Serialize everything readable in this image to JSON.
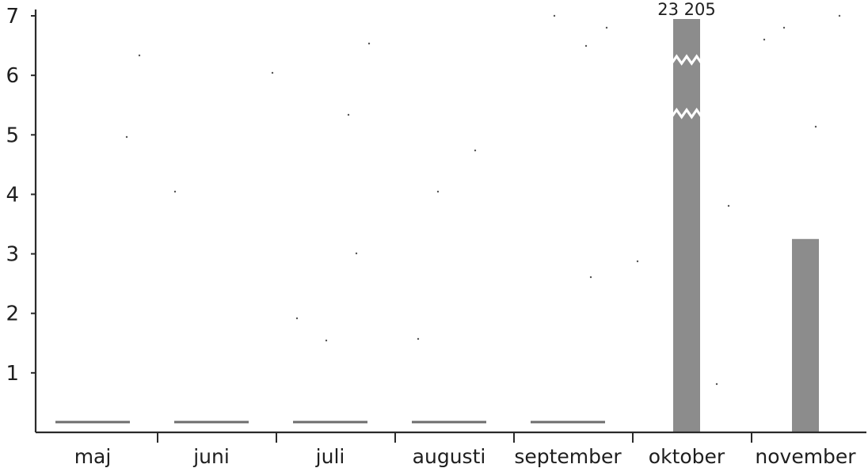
{
  "chart_data": {
    "type": "bar",
    "categories": [
      "maj",
      "juni",
      "juli",
      "augusti",
      "september",
      "oktober",
      "november"
    ],
    "values": [
      0.2,
      0.2,
      0.2,
      0.2,
      0.2,
      23.205,
      3.25
    ],
    "value_labels": [
      "",
      "",
      "",
      "",
      "",
      "23 205",
      ""
    ],
    "ylim": [
      0,
      7
    ],
    "yticks": [
      "1",
      "2",
      "3",
      "4",
      "5",
      "6",
      "7"
    ],
    "axis_break": "oktober",
    "bar_color": "#8c8c8c",
    "grid": false,
    "legend": "none"
  }
}
